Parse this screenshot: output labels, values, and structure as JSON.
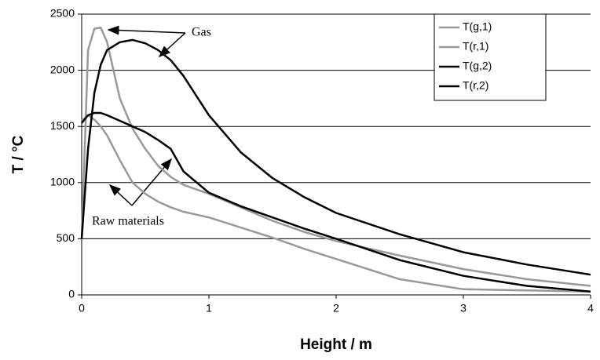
{
  "chart_data": {
    "type": "line",
    "xlabel": "Height / m",
    "ylabel": "T / °C",
    "annotations": [
      "Gas",
      "Raw materials"
    ],
    "x": [
      0,
      0.05,
      0.1,
      0.15,
      0.2,
      0.3,
      0.4,
      0.5,
      0.6,
      0.7,
      0.8,
      1,
      1.25,
      1.5,
      1.75,
      2,
      2.5,
      3,
      3.5,
      4
    ],
    "series": [
      {
        "name": "T(g,1)",
        "color": "#999999",
        "values": [
          500,
          2180,
          2370,
          2380,
          2250,
          1750,
          1480,
          1300,
          1150,
          1050,
          980,
          900,
          780,
          660,
          560,
          480,
          350,
          230,
          140,
          80
        ]
      },
      {
        "name": "T(r,1)",
        "color": "#999999",
        "values": [
          1550,
          1600,
          1560,
          1500,
          1420,
          1200,
          1000,
          900,
          830,
          780,
          740,
          690,
          600,
          510,
          410,
          320,
          140,
          50,
          40,
          30
        ]
      },
      {
        "name": "T(g,2)",
        "color": "#000000",
        "values": [
          500,
          1300,
          1800,
          2050,
          2180,
          2250,
          2270,
          2240,
          2180,
          2090,
          1950,
          1600,
          1270,
          1040,
          870,
          730,
          540,
          380,
          270,
          180
        ]
      },
      {
        "name": "T(r,2)",
        "color": "#000000",
        "values": [
          1530,
          1600,
          1620,
          1620,
          1600,
          1550,
          1500,
          1450,
          1380,
          1300,
          1100,
          910,
          790,
          690,
          590,
          500,
          310,
          170,
          80,
          30
        ]
      }
    ],
    "xlim": [
      0,
      4
    ],
    "xticks": [
      0,
      1,
      2,
      3,
      4
    ],
    "ylim": [
      0,
      2500
    ],
    "yticks": [
      0,
      500,
      1000,
      1500,
      2000,
      2500
    ],
    "grid": true,
    "legend": "upper right"
  }
}
